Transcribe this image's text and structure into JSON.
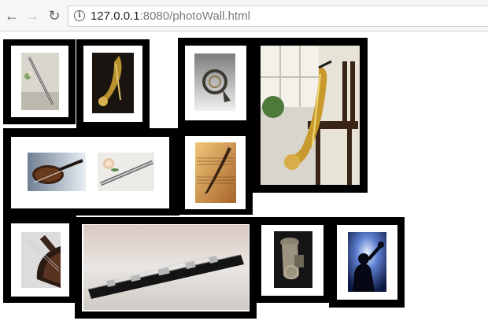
{
  "browser": {
    "url_host": "127.0.0.1",
    "url_rest": ":8080/photoWall.html"
  },
  "photos": [
    {
      "icon": "flute-icon"
    },
    {
      "icon": "saxophone-icon"
    },
    {
      "icon": "french-horn-icon"
    },
    {
      "icon": "saxophone-on-chair-icon"
    },
    {
      "icon": "violin-icon"
    },
    {
      "icon": "flute-with-rose-icon"
    },
    {
      "icon": "sheet-music-quill-icon"
    },
    {
      "icon": "cello-icon"
    },
    {
      "icon": "clarinet-icon"
    },
    {
      "icon": "tuba-icon"
    },
    {
      "icon": "trumpet-player-icon"
    }
  ]
}
